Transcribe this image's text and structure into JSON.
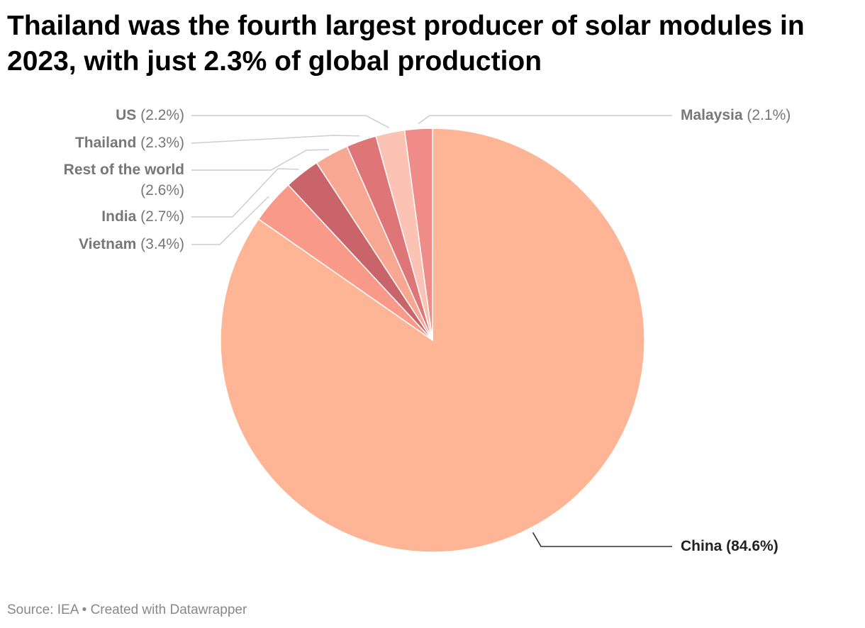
{
  "title": "Thailand was the fourth largest producer of solar modules in 2023, with just 2.3% of global production",
  "footer": {
    "source": "Source: IEA",
    "separator": "•",
    "credit": "Created with Datawrapper"
  },
  "chart_data": {
    "type": "pie",
    "start": "12 o'clock",
    "direction": "clockwise",
    "slices": [
      {
        "label": "China",
        "value": 84.6,
        "display": "(84.6%)",
        "color": "#fdb596",
        "label_side": "right"
      },
      {
        "label": "Vietnam",
        "value": 3.4,
        "display": "(3.4%)",
        "color": "#f9998a",
        "label_side": "left"
      },
      {
        "label": "India",
        "value": 2.7,
        "display": "(2.7%)",
        "color": "#c9656a",
        "label_side": "left"
      },
      {
        "label": "Rest of the world",
        "value": 2.6,
        "display": "(2.6%)",
        "color": "#f7a792",
        "label_side": "left"
      },
      {
        "label": "Thailand",
        "value": 2.3,
        "display": "(2.3%)",
        "color": "#de7678",
        "label_side": "left"
      },
      {
        "label": "US",
        "value": 2.2,
        "display": "(2.2%)",
        "color": "#fcc2b4",
        "label_side": "left"
      },
      {
        "label": "Malaysia",
        "value": 2.1,
        "display": "(2.1%)",
        "color": "#ef8c87",
        "label_side": "right"
      }
    ],
    "colors": {
      "label_text": "#777777",
      "highlight_label_text": "#222222",
      "leader_line": "#cccccc",
      "highlight_leader_line": "#333333",
      "slice_border": "#ffffff"
    }
  }
}
